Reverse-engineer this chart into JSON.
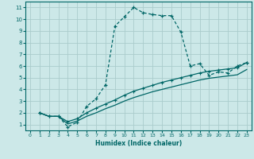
{
  "xlabel": "Humidex (Indice chaleur)",
  "background_color": "#cce8e8",
  "grid_color": "#aacccc",
  "line_color": "#006666",
  "xlim": [
    -0.5,
    23.5
  ],
  "ylim": [
    0.5,
    11.5
  ],
  "xticks": [
    0,
    1,
    2,
    3,
    4,
    5,
    6,
    7,
    8,
    9,
    10,
    11,
    12,
    13,
    14,
    15,
    16,
    17,
    18,
    19,
    20,
    21,
    22,
    23
  ],
  "yticks": [
    1,
    2,
    3,
    4,
    5,
    6,
    7,
    8,
    9,
    10,
    11
  ],
  "line1_x": [
    1,
    2,
    3,
    4,
    5,
    6,
    7,
    8,
    9,
    10,
    11,
    12,
    13,
    14,
    15,
    16,
    17,
    18,
    19,
    20,
    21,
    22,
    23
  ],
  "line1_y": [
    2.0,
    1.7,
    1.7,
    0.8,
    1.2,
    2.55,
    3.2,
    4.4,
    9.4,
    10.2,
    11.0,
    10.55,
    10.4,
    10.3,
    10.3,
    8.9,
    6.0,
    6.2,
    5.2,
    5.5,
    5.4,
    6.0,
    6.3
  ],
  "line2_x": [
    1,
    2,
    3,
    4,
    5,
    6,
    7,
    8,
    9,
    10,
    11,
    12,
    13,
    14,
    15,
    16,
    17,
    18,
    19,
    20,
    21,
    22,
    23
  ],
  "line2_y": [
    2.0,
    1.7,
    1.7,
    1.25,
    1.5,
    2.0,
    2.4,
    2.75,
    3.1,
    3.5,
    3.85,
    4.1,
    4.35,
    4.6,
    4.8,
    5.0,
    5.2,
    5.4,
    5.55,
    5.65,
    5.75,
    5.85,
    6.3
  ],
  "line3_x": [
    1,
    2,
    3,
    4,
    5,
    6,
    7,
    8,
    9,
    10,
    11,
    12,
    13,
    14,
    15,
    16,
    17,
    18,
    19,
    20,
    21,
    22,
    23
  ],
  "line3_y": [
    2.0,
    1.7,
    1.7,
    1.05,
    1.3,
    1.7,
    2.0,
    2.35,
    2.65,
    3.0,
    3.3,
    3.55,
    3.8,
    4.0,
    4.2,
    4.4,
    4.6,
    4.8,
    4.95,
    5.05,
    5.15,
    5.25,
    5.7
  ]
}
